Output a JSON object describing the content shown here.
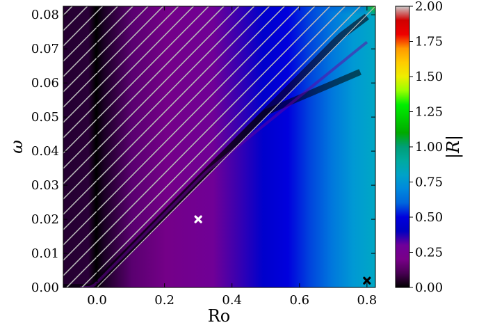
{
  "chart_data": {
    "type": "heatmap",
    "xlabel": "Ro",
    "ylabel": "ω",
    "colorbar_label": "|R|",
    "xlim": [
      -0.1,
      0.825
    ],
    "ylim": [
      0.0,
      0.0825
    ],
    "x_ticks": [
      {
        "value": 0.0,
        "label": "0.0"
      },
      {
        "value": 0.2,
        "label": "0.2"
      },
      {
        "value": 0.4,
        "label": "0.4"
      },
      {
        "value": 0.6,
        "label": "0.6"
      },
      {
        "value": 0.8,
        "label": "0.8"
      }
    ],
    "y_ticks": [
      {
        "value": 0.0,
        "label": "0.00"
      },
      {
        "value": 0.01,
        "label": "0.01"
      },
      {
        "value": 0.02,
        "label": "0.02"
      },
      {
        "value": 0.03,
        "label": "0.03"
      },
      {
        "value": 0.04,
        "label": "0.04"
      },
      {
        "value": 0.05,
        "label": "0.05"
      },
      {
        "value": 0.06,
        "label": "0.06"
      },
      {
        "value": 0.07,
        "label": "0.07"
      },
      {
        "value": 0.08,
        "label": "0.08"
      }
    ],
    "colorbar": {
      "range": [
        0.0,
        2.0
      ],
      "colormap": "nipy_spectral",
      "ticks": [
        {
          "value": 0.0,
          "label": "0.00"
        },
        {
          "value": 0.25,
          "label": "0.25"
        },
        {
          "value": 0.5,
          "label": "0.50"
        },
        {
          "value": 0.75,
          "label": "0.75"
        },
        {
          "value": 1.0,
          "label": "1.00"
        },
        {
          "value": 1.25,
          "label": "1.25"
        },
        {
          "value": 1.5,
          "label": "1.50"
        },
        {
          "value": 1.75,
          "label": "1.75"
        },
        {
          "value": 2.0,
          "label": "2.00"
        }
      ]
    },
    "hatched_region": {
      "boundary": "omega = Ro / 10",
      "side": "above",
      "style": "gray diagonal hatch"
    },
    "vertical_dashed_line": {
      "x": 0.0,
      "color": "#000000"
    },
    "markers": [
      {
        "x": 0.3,
        "y": 0.02,
        "shape": "x",
        "color": "#ffffff"
      },
      {
        "x": 0.8,
        "y": 0.002,
        "shape": "x",
        "color": "#000000"
      }
    ]
  }
}
